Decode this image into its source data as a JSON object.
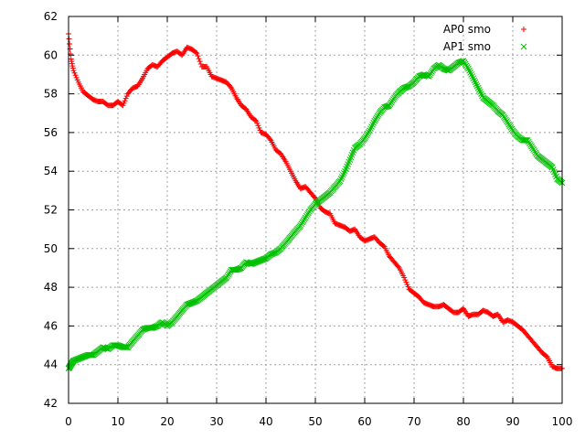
{
  "chart_data": {
    "type": "scatter",
    "title": "",
    "xlabel": "",
    "ylabel": "",
    "xlim": [
      0,
      100
    ],
    "ylim": [
      42,
      62
    ],
    "x_ticks": [
      "0",
      "10",
      "20",
      "30",
      "40",
      "50",
      "60",
      "70",
      "80",
      "90",
      "100"
    ],
    "y_ticks": [
      "42",
      "44",
      "46",
      "48",
      "50",
      "52",
      "54",
      "56",
      "58",
      "60",
      "62"
    ],
    "grid": true,
    "legend_position": "top-right",
    "series": [
      {
        "name": "AP0 smo",
        "color": "#ff0000",
        "marker": "plus",
        "x": [
          0,
          0.5,
          1,
          2,
          3,
          4,
          5,
          6,
          7,
          8,
          9,
          10,
          11,
          12,
          13,
          14,
          15,
          16,
          17,
          18,
          19,
          20,
          21,
          22,
          23,
          24,
          25,
          26,
          27,
          28,
          29,
          30,
          31,
          32,
          33,
          34,
          35,
          36,
          37,
          38,
          39,
          40,
          41,
          42,
          43,
          44,
          45,
          46,
          47,
          48,
          49,
          50,
          51,
          52,
          53,
          54,
          55,
          56,
          57,
          58,
          59,
          60,
          61,
          62,
          63,
          64,
          65,
          66,
          67,
          68,
          69,
          70,
          71,
          72,
          73,
          74,
          75,
          76,
          77,
          78,
          79,
          80,
          81,
          82,
          83,
          84,
          85,
          86,
          87,
          88,
          89,
          90,
          91,
          92,
          93,
          94,
          95,
          96,
          97,
          98,
          99,
          100
        ],
        "y": [
          61.1,
          59.8,
          59.2,
          58.6,
          58.1,
          57.9,
          57.7,
          57.6,
          57.6,
          57.4,
          57.4,
          57.6,
          57.4,
          58.0,
          58.3,
          58.4,
          58.8,
          59.3,
          59.5,
          59.4,
          59.7,
          59.9,
          60.1,
          60.2,
          60.0,
          60.4,
          60.3,
          60.1,
          59.4,
          59.4,
          58.9,
          58.8,
          58.7,
          58.6,
          58.3,
          57.8,
          57.4,
          57.2,
          56.8,
          56.6,
          56.0,
          55.9,
          55.6,
          55.1,
          54.9,
          54.5,
          54.0,
          53.5,
          53.1,
          53.2,
          52.9,
          52.6,
          52.1,
          51.9,
          51.8,
          51.3,
          51.2,
          51.1,
          50.9,
          51.0,
          50.6,
          50.4,
          50.5,
          50.6,
          50.3,
          50.1,
          49.6,
          49.3,
          49.0,
          48.5,
          47.9,
          47.7,
          47.5,
          47.2,
          47.1,
          47.0,
          47.0,
          47.1,
          46.9,
          46.7,
          46.7,
          46.9,
          46.5,
          46.6,
          46.6,
          46.8,
          46.7,
          46.5,
          46.6,
          46.2,
          46.3,
          46.2,
          46.0,
          45.8,
          45.5,
          45.2,
          44.9,
          44.6,
          44.4,
          43.9,
          43.8,
          43.8
        ]
      },
      {
        "name": "AP1 smo",
        "color": "#00c000",
        "marker": "cross",
        "x": [
          0,
          0.5,
          1,
          2,
          3,
          4,
          5,
          6,
          7,
          8,
          9,
          10,
          11,
          12,
          13,
          14,
          15,
          16,
          17,
          18,
          19,
          20,
          21,
          22,
          23,
          24,
          25,
          26,
          27,
          28,
          29,
          30,
          31,
          32,
          33,
          34,
          35,
          36,
          37,
          38,
          39,
          40,
          41,
          42,
          43,
          44,
          45,
          46,
          47,
          48,
          49,
          50,
          51,
          52,
          53,
          54,
          55,
          56,
          57,
          58,
          59,
          60,
          61,
          62,
          63,
          64,
          65,
          66,
          67,
          68,
          69,
          70,
          71,
          72,
          73,
          74,
          75,
          76,
          77,
          78,
          79,
          80,
          81,
          82,
          83,
          84,
          85,
          86,
          87,
          88,
          89,
          90,
          91,
          92,
          93,
          94,
          95,
          96,
          97,
          98,
          99,
          100
        ],
        "y": [
          43.8,
          44.0,
          44.2,
          44.3,
          44.4,
          44.5,
          44.5,
          44.7,
          44.9,
          44.8,
          45.0,
          45.0,
          44.9,
          44.9,
          45.2,
          45.5,
          45.8,
          45.9,
          45.9,
          46.0,
          46.2,
          46.0,
          46.2,
          46.5,
          46.8,
          47.1,
          47.2,
          47.3,
          47.5,
          47.7,
          47.9,
          48.1,
          48.3,
          48.5,
          48.9,
          48.9,
          49.0,
          49.3,
          49.2,
          49.3,
          49.4,
          49.5,
          49.7,
          49.8,
          50.0,
          50.3,
          50.6,
          50.9,
          51.2,
          51.6,
          52.0,
          52.3,
          52.5,
          52.7,
          52.9,
          53.2,
          53.5,
          54.0,
          54.6,
          55.2,
          55.4,
          55.7,
          56.1,
          56.6,
          57.0,
          57.3,
          57.4,
          57.8,
          58.1,
          58.3,
          58.4,
          58.6,
          58.9,
          59.0,
          58.9,
          59.3,
          59.5,
          59.3,
          59.2,
          59.4,
          59.6,
          59.7,
          59.3,
          58.8,
          58.3,
          57.8,
          57.6,
          57.4,
          57.1,
          56.9,
          56.5,
          56.1,
          55.8,
          55.6,
          55.6,
          55.2,
          54.8,
          54.6,
          54.4,
          54.2,
          53.6,
          53.4
        ]
      }
    ]
  }
}
